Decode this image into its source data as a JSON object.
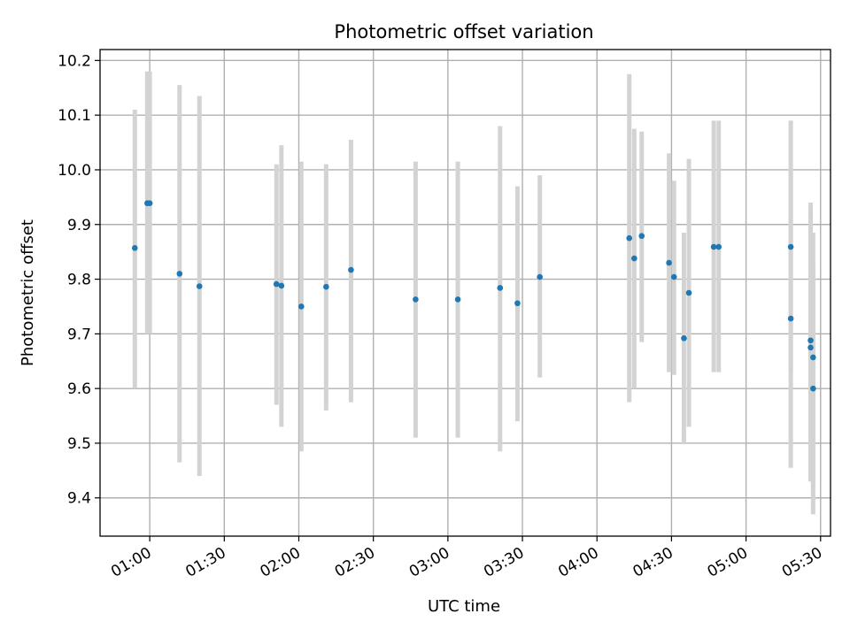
{
  "chart_data": {
    "type": "scatter",
    "title": "Photometric offset variation",
    "xlabel": "UTC time",
    "ylabel": "Photometric offset",
    "x_ticks": [
      "01:00",
      "01:30",
      "02:00",
      "02:30",
      "03:00",
      "03:30",
      "04:00",
      "04:30",
      "05:00",
      "05:30"
    ],
    "y_ticks": [
      "9.4",
      "9.5",
      "9.6",
      "9.7",
      "9.8",
      "9.9",
      "10.0",
      "10.1",
      "10.2"
    ],
    "xlim": [
      "00:40",
      "05:34"
    ],
    "ylim": [
      9.33,
      10.22
    ],
    "grid": true,
    "marker_color": "#1f77b4",
    "errorbar_color": "#d3d3d3",
    "points": [
      {
        "x": "00:54",
        "y": 9.857,
        "lo": 9.6,
        "hi": 10.11
      },
      {
        "x": "00:59",
        "y": 9.939,
        "lo": 9.7,
        "hi": 10.18
      },
      {
        "x": "01:00",
        "y": 9.939,
        "lo": 9.7,
        "hi": 10.18
      },
      {
        "x": "01:12",
        "y": 9.81,
        "lo": 9.465,
        "hi": 10.155
      },
      {
        "x": "01:20",
        "y": 9.787,
        "lo": 9.44,
        "hi": 10.135
      },
      {
        "x": "01:51",
        "y": 9.791,
        "lo": 9.57,
        "hi": 10.01
      },
      {
        "x": "01:53",
        "y": 9.788,
        "lo": 9.53,
        "hi": 10.045
      },
      {
        "x": "02:01",
        "y": 9.75,
        "lo": 9.485,
        "hi": 10.015
      },
      {
        "x": "02:11",
        "y": 9.786,
        "lo": 9.56,
        "hi": 10.01
      },
      {
        "x": "02:21",
        "y": 9.817,
        "lo": 9.575,
        "hi": 10.055
      },
      {
        "x": "02:47",
        "y": 9.763,
        "lo": 9.51,
        "hi": 10.015
      },
      {
        "x": "03:04",
        "y": 9.763,
        "lo": 9.51,
        "hi": 10.015
      },
      {
        "x": "03:21",
        "y": 9.784,
        "lo": 9.485,
        "hi": 10.08
      },
      {
        "x": "03:28",
        "y": 9.756,
        "lo": 9.54,
        "hi": 9.97
      },
      {
        "x": "03:37",
        "y": 9.804,
        "lo": 9.62,
        "hi": 9.99
      },
      {
        "x": "04:13",
        "y": 9.875,
        "lo": 9.575,
        "hi": 10.175
      },
      {
        "x": "04:15",
        "y": 9.838,
        "lo": 9.6,
        "hi": 10.075
      },
      {
        "x": "04:18",
        "y": 9.879,
        "lo": 9.685,
        "hi": 10.07
      },
      {
        "x": "04:29",
        "y": 9.83,
        "lo": 9.63,
        "hi": 10.03
      },
      {
        "x": "04:31",
        "y": 9.804,
        "lo": 9.625,
        "hi": 9.98
      },
      {
        "x": "04:35",
        "y": 9.692,
        "lo": 9.5,
        "hi": 9.885
      },
      {
        "x": "04:37",
        "y": 9.775,
        "lo": 9.53,
        "hi": 10.02
      },
      {
        "x": "04:47",
        "y": 9.859,
        "lo": 9.63,
        "hi": 10.09
      },
      {
        "x": "04:49",
        "y": 9.859,
        "lo": 9.63,
        "hi": 10.09
      },
      {
        "x": "05:18",
        "y": 9.859,
        "lo": 9.63,
        "hi": 10.09
      },
      {
        "x": "05:18",
        "y": 9.728,
        "lo": 9.455,
        "hi": 10.0
      },
      {
        "x": "05:26",
        "y": 9.688,
        "lo": 9.435,
        "hi": 9.94
      },
      {
        "x": "05:26",
        "y": 9.675,
        "lo": 9.43,
        "hi": 9.91
      },
      {
        "x": "05:27",
        "y": 9.657,
        "lo": 9.42,
        "hi": 9.885
      },
      {
        "x": "05:27",
        "y": 9.6,
        "lo": 9.37,
        "hi": 9.83
      }
    ]
  }
}
